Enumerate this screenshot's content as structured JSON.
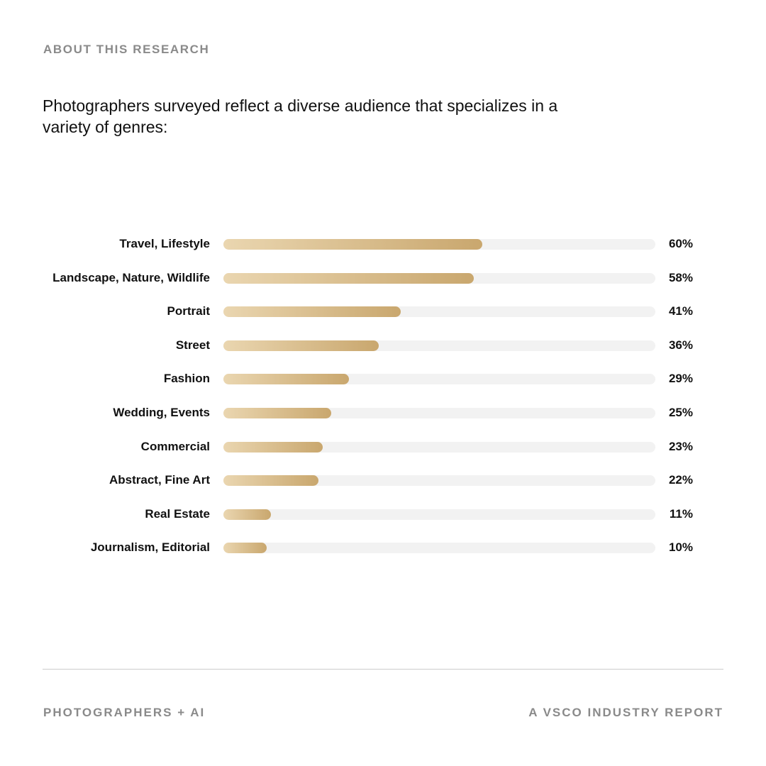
{
  "header": {
    "eyebrow": "ABOUT THIS RESEARCH",
    "headline": "Photographers surveyed reflect a diverse audience that specializes in a variety of genres:"
  },
  "colors": {
    "bar_start": "#ead6b0",
    "bar_end": "#c9a76e",
    "track": "#f2f2f2",
    "muted_text": "#8a8a8a"
  },
  "chart_data": {
    "type": "bar",
    "orientation": "horizontal",
    "categories": [
      "Travel, Lifestyle",
      "Landscape, Nature, Wildlife",
      "Portrait",
      "Street",
      "Fashion",
      "Wedding, Events",
      "Commercial",
      "Abstract, Fine Art",
      "Real Estate",
      "Journalism, Editorial"
    ],
    "values": [
      60,
      58,
      41,
      36,
      29,
      25,
      23,
      22,
      11,
      10
    ],
    "value_labels": [
      "60%",
      "58%",
      "41%",
      "36%",
      "29%",
      "25%",
      "23%",
      "22%",
      "11%",
      "10%"
    ],
    "xlim": [
      0,
      100
    ],
    "unit": "%",
    "grid": false
  },
  "footer": {
    "left": "PHOTOGRAPHERS + AI",
    "right": "A VSCO INDUSTRY REPORT"
  }
}
